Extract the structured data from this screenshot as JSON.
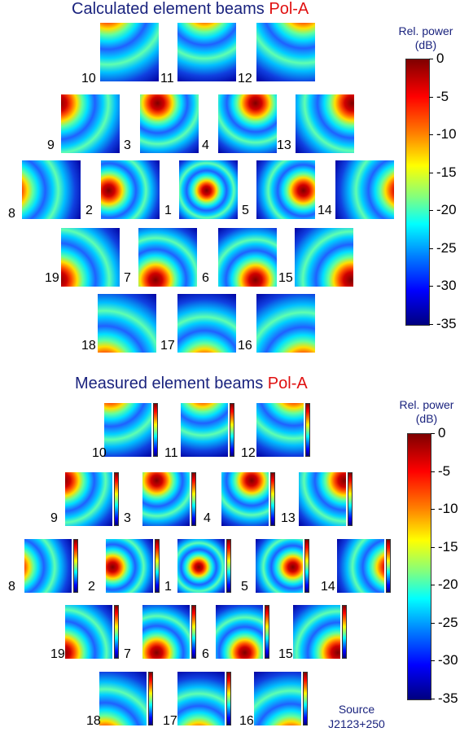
{
  "top": {
    "title": "Calculated element beams",
    "pol": "Pol-A",
    "colorbar": {
      "label": [
        "Rel. power",
        "(dB)"
      ],
      "ticks": [
        0,
        -5,
        -10,
        -15,
        -20,
        -25,
        -30,
        -35
      ]
    },
    "elements": [
      "10",
      "11",
      "12",
      "9",
      "3",
      "4",
      "13",
      "8",
      "2",
      "1",
      "5",
      "14",
      "19",
      "7",
      "6",
      "15",
      "18",
      "17",
      "16"
    ]
  },
  "bottom": {
    "title": "Measured element beams",
    "pol": "Pol-A",
    "colorbar": {
      "label": [
        "Rel. power",
        "(dB)"
      ],
      "ticks": [
        0,
        -5,
        -10,
        -15,
        -20,
        -25,
        -30,
        -35
      ]
    },
    "elements": [
      "10",
      "11",
      "12",
      "9",
      "3",
      "4",
      "13",
      "8",
      "2",
      "1",
      "5",
      "14",
      "19",
      "7",
      "6",
      "15",
      "18",
      "17",
      "16"
    ],
    "source": [
      "Source",
      "J2123+250"
    ]
  }
}
